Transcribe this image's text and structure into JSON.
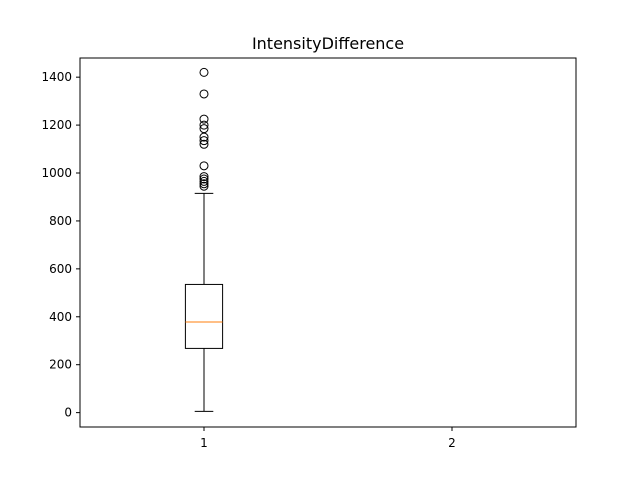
{
  "chart_data": {
    "type": "box",
    "title": "IntensityDifference",
    "xlabel": "",
    "ylabel": "",
    "x_ticks": [
      "1",
      "2"
    ],
    "y_ticks": [
      0,
      200,
      400,
      600,
      800,
      1000,
      1200,
      1400
    ],
    "ylim": [
      -60,
      1480
    ],
    "xlim": [
      0.5,
      2.5
    ],
    "grid": false,
    "series": [
      {
        "position": 1,
        "whisker_low": 5,
        "q1": 268,
        "median": 378,
        "q3": 535,
        "whisker_high": 915,
        "outliers": [
          945,
          955,
          965,
          975,
          985,
          1030,
          1120,
          1135,
          1150,
          1185,
          1200,
          1225,
          1330,
          1420
        ]
      }
    ],
    "colors": {
      "box": "#000000",
      "median": "#ff7f0e",
      "axes": "#000000"
    }
  }
}
